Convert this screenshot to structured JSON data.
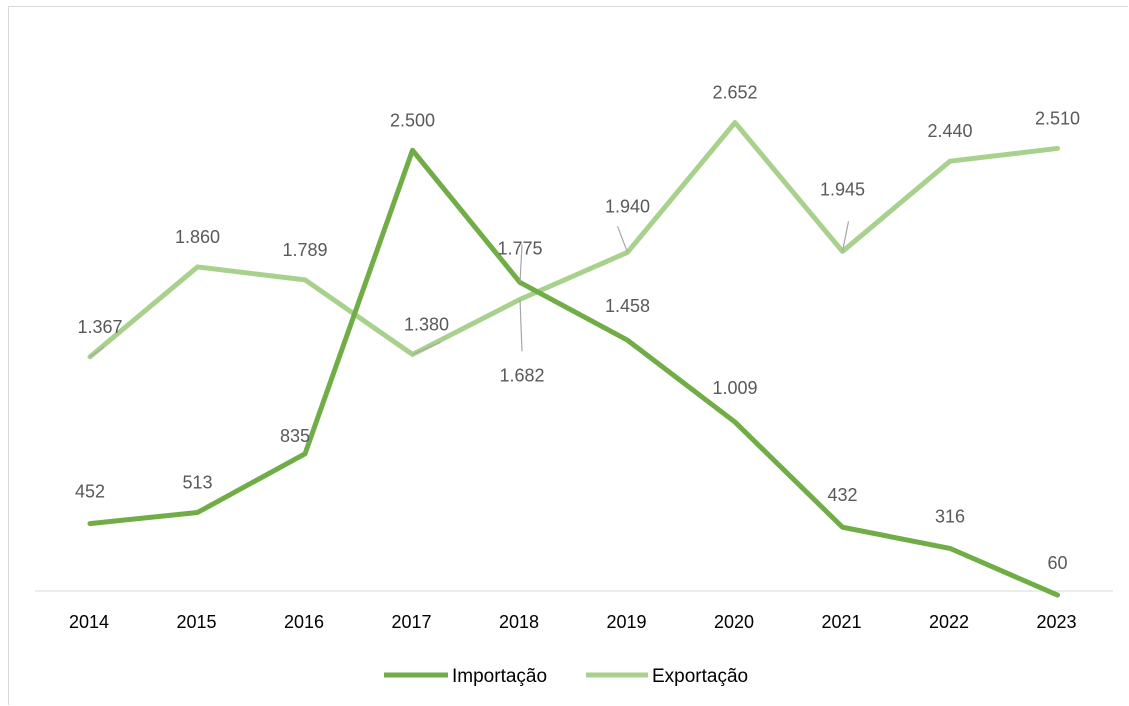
{
  "chart_data": {
    "type": "line",
    "categories": [
      "2014",
      "2015",
      "2016",
      "2017",
      "2018",
      "2019",
      "2020",
      "2021",
      "2022",
      "2023"
    ],
    "series": [
      {
        "name": "Importação",
        "color": "#70ad47",
        "values": [
          452,
          513,
          835,
          2500,
          1775,
          1458,
          1009,
          432,
          316,
          60
        ],
        "labels": [
          "452",
          "513",
          "835",
          "2.500",
          "1.775",
          "1.458",
          "1.009",
          "432",
          "316",
          "60"
        ]
      },
      {
        "name": "Exportação",
        "color": "#a9d18e",
        "values": [
          1367,
          1860,
          1789,
          1380,
          1682,
          1940,
          2652,
          1945,
          2440,
          2510
        ],
        "labels": [
          "1.367",
          "1.860",
          "1.789",
          "1.380",
          "1.682",
          "1.940",
          "2.652",
          "1.945",
          "2.440",
          "2.510"
        ]
      }
    ],
    "title": "",
    "xlabel": "",
    "ylabel": "",
    "ylim": [
      0,
      2800
    ],
    "grid": false,
    "legend": "bottom"
  }
}
